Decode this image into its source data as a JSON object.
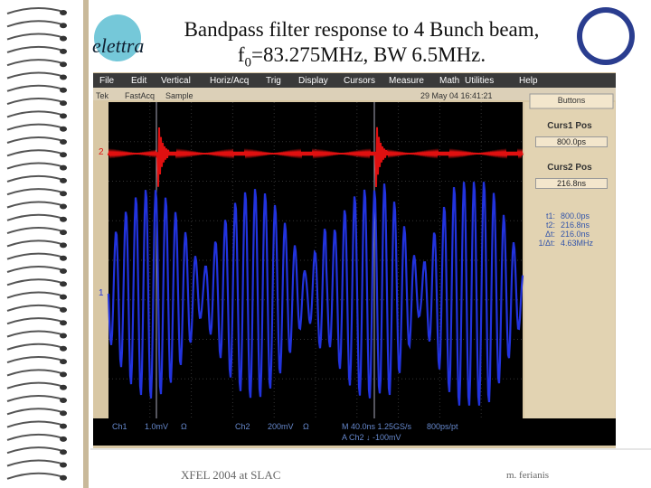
{
  "slide": {
    "title_line1": "Bandpass filter response to 4 Bunch beam,",
    "title_line2_f": "f",
    "title_line2_sub": "0",
    "title_line2_rest": "=83.275MHz, BW 6.5MHz.",
    "logo": "elettra",
    "footer_left": "XFEL 2004 at SLAC",
    "footer_right": "m. ferianis"
  },
  "scope": {
    "menu": [
      "File",
      "Edit",
      "Vertical",
      "Horiz/Acq",
      "Trig",
      "Display",
      "Cursors",
      "Measure",
      "Math",
      "Utilities",
      "Help"
    ],
    "status": {
      "brand": "Tek",
      "mode": "FastAcq",
      "acq": "Sample",
      "datetime": "29 May 04 16:41:21"
    },
    "buttons": "Buttons",
    "curs1": {
      "label": "Curs1 Pos",
      "value": "800.0ps"
    },
    "curs2": {
      "label": "Curs2 Pos",
      "value": "216.8ns"
    },
    "readouts": [
      [
        "t1:",
        "800.0ps"
      ],
      [
        "t2:",
        "216.8ns"
      ],
      [
        "Δt:",
        "216.0ns"
      ],
      [
        "1/Δt:",
        "4.63MHz"
      ]
    ],
    "markers": {
      "ch2": "2",
      "ch1": "1"
    },
    "bottom": {
      "ch1": "Ch1",
      "ch1_scale": "1.0mV",
      "ch1_term": "Ω",
      "ch2": "Ch2",
      "ch2_scale": "200mV",
      "ch2_term": "Ω",
      "timebase": "M 40.0ns 1.25GS/s",
      "res": "800ps/pt",
      "trigger": "A  Ch2 ↓ -100mV"
    }
  }
}
